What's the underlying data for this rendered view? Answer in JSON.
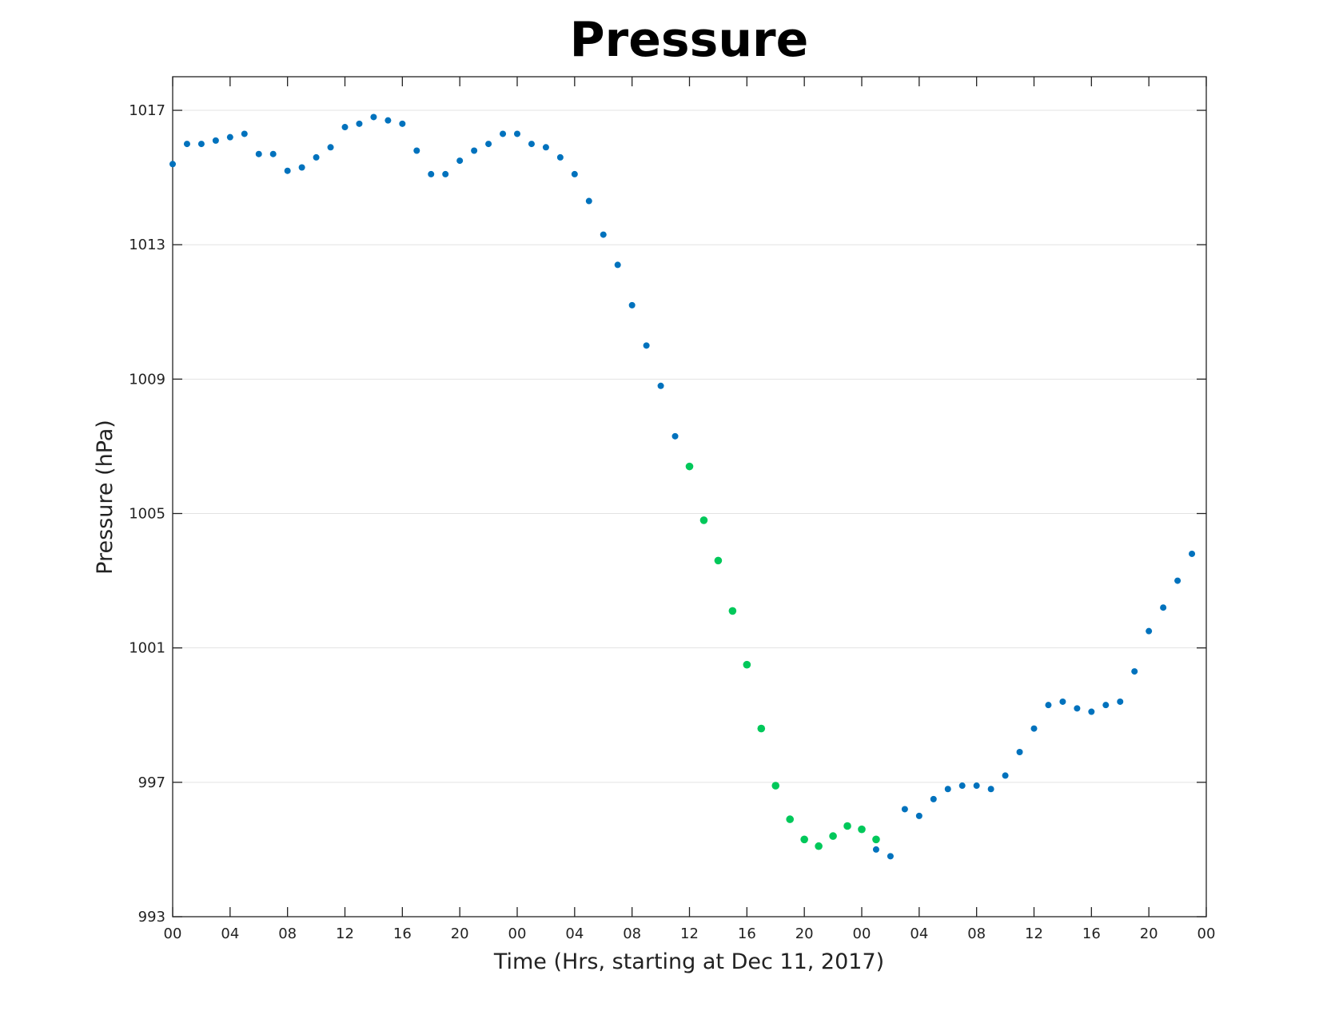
{
  "chart_data": {
    "type": "scatter",
    "title": "Pressure",
    "xlabel": "Time (Hrs, starting at Dec 11, 2017)",
    "ylabel": "Pressure (hPa)",
    "xlim": [
      0,
      72
    ],
    "ylim": [
      993,
      1018
    ],
    "yticks": [
      993,
      997,
      1001,
      1005,
      1009,
      1013,
      1017
    ],
    "xticks": [
      0,
      4,
      8,
      12,
      16,
      20,
      24,
      28,
      32,
      36,
      40,
      44,
      48,
      52,
      56,
      60,
      64,
      68,
      72
    ],
    "xtick_labels": [
      "00",
      "04",
      "08",
      "12",
      "16",
      "20",
      "00",
      "04",
      "08",
      "12",
      "16",
      "20",
      "00",
      "04",
      "08",
      "12",
      "16",
      "20",
      "00"
    ],
    "grid": "horizontal",
    "series": [
      {
        "color": "#0072bd",
        "points": [
          [
            0,
            1015.4
          ],
          [
            1,
            1016.0
          ],
          [
            2,
            1016.0
          ],
          [
            3,
            1016.1
          ],
          [
            4,
            1016.2
          ],
          [
            5,
            1016.3
          ],
          [
            6,
            1015.7
          ],
          [
            7,
            1015.7
          ],
          [
            8,
            1015.2
          ],
          [
            9,
            1015.3
          ],
          [
            10,
            1015.6
          ],
          [
            11,
            1015.9
          ],
          [
            12,
            1016.5
          ],
          [
            13,
            1016.6
          ],
          [
            14,
            1016.8
          ],
          [
            15,
            1016.7
          ],
          [
            16,
            1016.6
          ],
          [
            17,
            1015.8
          ],
          [
            18,
            1015.1
          ],
          [
            19,
            1015.1
          ],
          [
            20,
            1015.5
          ],
          [
            21,
            1015.8
          ],
          [
            22,
            1016.0
          ],
          [
            23,
            1016.3
          ],
          [
            24,
            1016.3
          ],
          [
            25,
            1016.0
          ],
          [
            26,
            1015.9
          ],
          [
            27,
            1015.6
          ],
          [
            28,
            1015.1
          ],
          [
            29,
            1014.3
          ],
          [
            30,
            1013.3
          ],
          [
            31,
            1012.4
          ],
          [
            32,
            1011.2
          ],
          [
            33,
            1010.0
          ],
          [
            34,
            1008.8
          ],
          [
            35,
            1007.3
          ],
          [
            49,
            995.0
          ],
          [
            50,
            994.8
          ],
          [
            51,
            996.2
          ],
          [
            52,
            996.0
          ],
          [
            53,
            996.5
          ],
          [
            54,
            996.8
          ],
          [
            55,
            996.9
          ],
          [
            56,
            996.9
          ],
          [
            57,
            996.8
          ],
          [
            58,
            997.2
          ],
          [
            59,
            997.9
          ],
          [
            60,
            998.6
          ],
          [
            61,
            999.3
          ],
          [
            62,
            999.4
          ],
          [
            63,
            999.2
          ],
          [
            64,
            999.1
          ],
          [
            65,
            999.3
          ],
          [
            66,
            999.4
          ],
          [
            67,
            1000.3
          ],
          [
            68,
            1001.5
          ],
          [
            69,
            1002.2
          ],
          [
            70,
            1003.0
          ],
          [
            71,
            1003.8
          ]
        ]
      },
      {
        "color": "#00c85a",
        "points": [
          [
            36,
            1006.4
          ],
          [
            37,
            1004.8
          ],
          [
            38,
            1003.6
          ],
          [
            39,
            1002.1
          ],
          [
            40,
            1000.5
          ],
          [
            41,
            998.6
          ],
          [
            42,
            996.9
          ],
          [
            43,
            995.9
          ],
          [
            44,
            995.3
          ],
          [
            45,
            995.1
          ],
          [
            46,
            995.4
          ],
          [
            47,
            995.7
          ],
          [
            48,
            995.6
          ],
          [
            49,
            995.3
          ]
        ]
      }
    ]
  }
}
